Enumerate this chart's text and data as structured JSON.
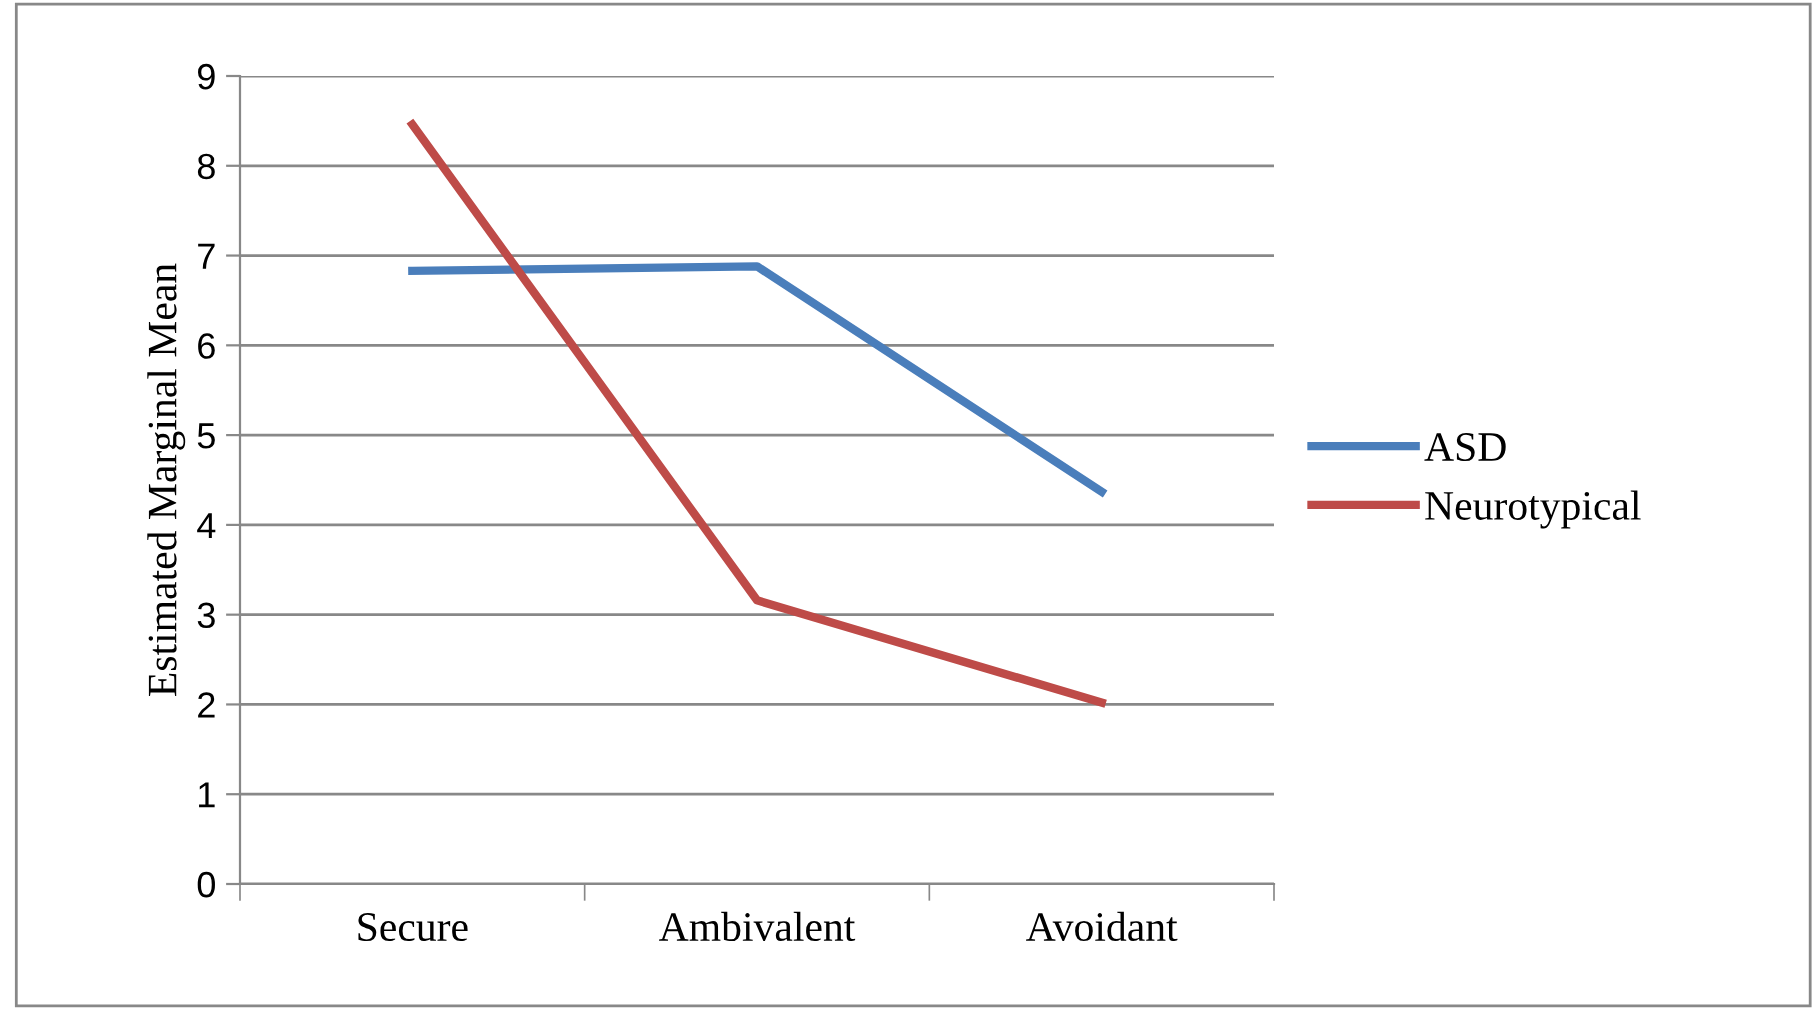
{
  "chart_data": {
    "type": "line",
    "ylabel": "Estimated Marginal Mean",
    "categories": [
      "Secure",
      "Ambivalent",
      "Avoidant"
    ],
    "series": [
      {
        "name": "ASD",
        "color": "#4a7ebb",
        "values": [
          6.83,
          6.88,
          4.37
        ]
      },
      {
        "name": "Neurotypical",
        "color": "#be4b48",
        "values": [
          8.46,
          3.16,
          2.02
        ]
      }
    ],
    "ylim": [
      0,
      9
    ],
    "yticks": [
      0,
      1,
      2,
      3,
      4,
      5,
      6,
      7,
      8,
      9
    ],
    "grid": "y",
    "legend": "right",
    "marker": "none",
    "line_style": "solid"
  }
}
